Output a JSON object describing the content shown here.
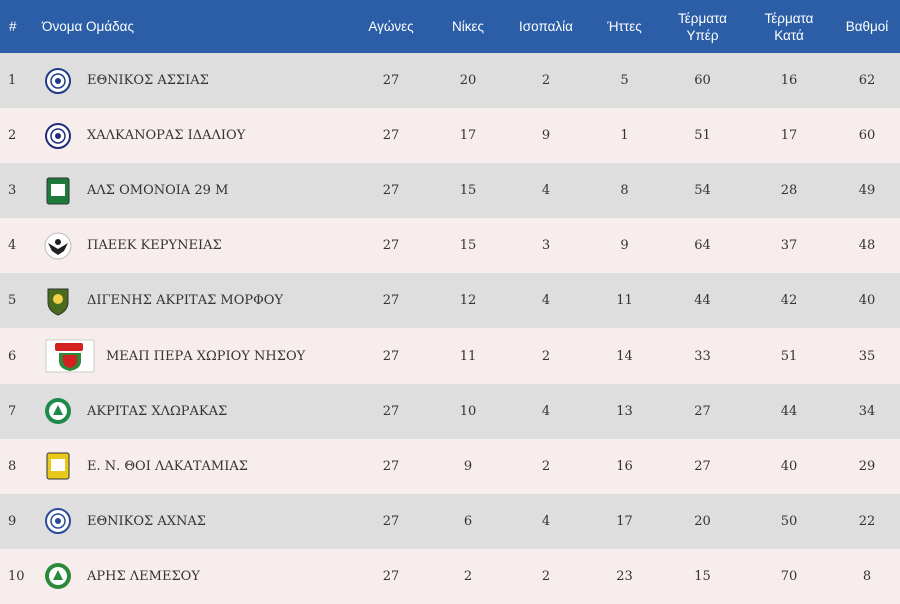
{
  "header": {
    "rank": "#",
    "team": "Όνομα Ομάδας",
    "played": "Αγώνες",
    "wins": "Νίκες",
    "draws": "Ισοπαλία",
    "losses": "Ήττες",
    "goals_for_line1": "Τέρματα",
    "goals_for_line2": "Υπέρ",
    "goals_against_line1": "Τέρματα",
    "goals_against_line2": "Κατά",
    "points": "Βαθμοί"
  },
  "rows": [
    {
      "rank": "1",
      "team": "ΕΘΝΙΚΟΣ ΑΣΣΙΑΣ",
      "played": "27",
      "wins": "20",
      "draws": "2",
      "losses": "5",
      "gf": "60",
      "ga": "16",
      "pts": "62",
      "logo_icon": "ethnikos-assias-crest-icon",
      "logo_color": "#1f3c8a"
    },
    {
      "rank": "2",
      "team": "ΧΑΛΚΑΝΟΡΑΣ ΙΔΑΛΙΟΥ",
      "played": "27",
      "wins": "17",
      "draws": "9",
      "losses": "1",
      "gf": "51",
      "ga": "17",
      "pts": "60",
      "logo_icon": "chalkanoras-crest-icon",
      "logo_color": "#1f2d7a"
    },
    {
      "rank": "3",
      "team": "ΑΛΣ ΟΜΟΝΟΙΑ 29 Μ",
      "played": "27",
      "wins": "15",
      "draws": "4",
      "losses": "8",
      "gf": "54",
      "ga": "28",
      "pts": "49",
      "logo_icon": "omonoia-crest-icon",
      "logo_color": "#1e7a3a"
    },
    {
      "rank": "4",
      "team": "ΠΑΕΕΚ ΚΕΡΥΝΕΙΑΣ",
      "played": "27",
      "wins": "15",
      "draws": "3",
      "losses": "9",
      "gf": "64",
      "ga": "37",
      "pts": "48",
      "logo_icon": "paeek-eagle-crest-icon",
      "logo_color": "#222222"
    },
    {
      "rank": "5",
      "team": "ΔΙΓΕΝΗΣ ΑΚΡΙΤΑΣ ΜΟΡΦΟΥ",
      "played": "27",
      "wins": "12",
      "draws": "4",
      "losses": "11",
      "gf": "44",
      "ga": "42",
      "pts": "40",
      "logo_icon": "digenis-shield-crest-icon",
      "logo_color": "#4a6b1e"
    },
    {
      "rank": "6",
      "team": "ΜΕΑΠ ΠΕΡΑ ΧΩΡΙΟΥ ΝΗΣΟΥ",
      "played": "27",
      "wins": "11",
      "draws": "2",
      "losses": "14",
      "gf": "33",
      "ga": "51",
      "pts": "35",
      "logo_icon": "meap-crest-icon",
      "logo_color": "#d42020"
    },
    {
      "rank": "7",
      "team": "ΑΚΡΙΤΑΣ ΧΛΩΡΑΚΑΣ",
      "played": "27",
      "wins": "10",
      "draws": "4",
      "losses": "13",
      "gf": "27",
      "ga": "44",
      "pts": "34",
      "logo_icon": "akritas-crest-icon",
      "logo_color": "#1e8a4a"
    },
    {
      "rank": "8",
      "team": "Ε. Ν. ΘΟΙ ΛΑΚΑΤΑΜΙΑΣ",
      "played": "27",
      "wins": "9",
      "draws": "2",
      "losses": "16",
      "gf": "27",
      "ga": "40",
      "pts": "29",
      "logo_icon": "thoi-crest-icon",
      "logo_color": "#e8c81a"
    },
    {
      "rank": "9",
      "team": "ΕΘΝΙΚΟΣ ΑΧΝΑΣ",
      "played": "27",
      "wins": "6",
      "draws": "4",
      "losses": "17",
      "gf": "20",
      "ga": "50",
      "pts": "22",
      "logo_icon": "ethnikos-achnas-crest-icon",
      "logo_color": "#2a4a9a"
    },
    {
      "rank": "10",
      "team": "ΑΡΗΣ ΛΕΜΕΣΟΥ",
      "played": "27",
      "wins": "2",
      "draws": "2",
      "losses": "23",
      "gf": "15",
      "ga": "70",
      "pts": "8",
      "logo_icon": "aris-crest-icon",
      "logo_color": "#2a8a3a"
    }
  ],
  "colors": {
    "header_bg": "#2b5ea7",
    "row_odd": "#dedede",
    "row_even": "#f8eded"
  }
}
